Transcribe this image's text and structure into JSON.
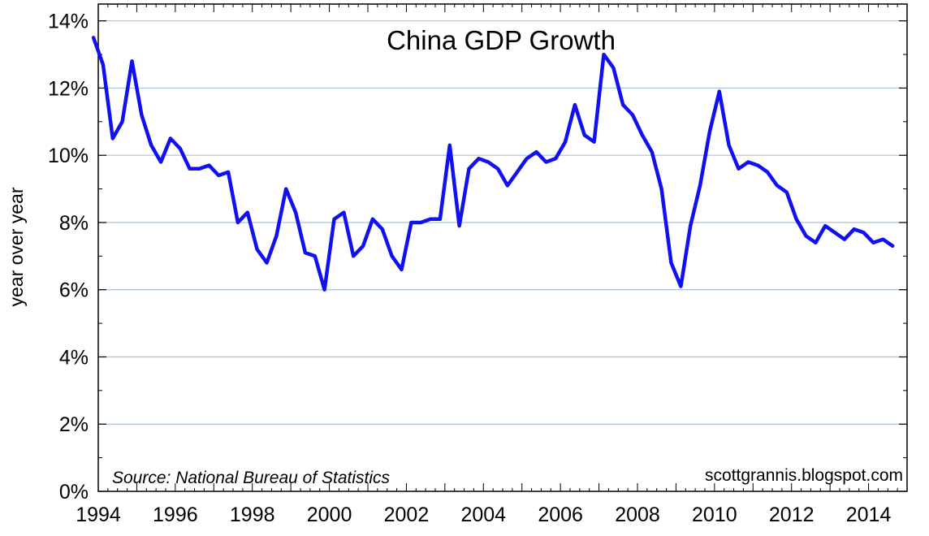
{
  "chart_data": {
    "type": "line",
    "title": "China GDP Growth",
    "xlabel": "",
    "ylabel": "year over year",
    "xlim": [
      1994,
      2015
    ],
    "ylim": [
      0,
      14.5
    ],
    "x_ticks": [
      1994,
      1996,
      1998,
      2000,
      2002,
      2004,
      2006,
      2008,
      2010,
      2012,
      2014
    ],
    "x_tick_labels": [
      "1994",
      "1996",
      "1998",
      "2000",
      "2002",
      "2004",
      "2006",
      "2008",
      "2010",
      "2012",
      "2014"
    ],
    "y_ticks": [
      0,
      2,
      4,
      6,
      8,
      10,
      12,
      14
    ],
    "y_tick_labels": [
      "0%",
      "2%",
      "4%",
      "6%",
      "8%",
      "10%",
      "12%",
      "14%"
    ],
    "grid": "horizontal",
    "source": "Source: National Bureau of Statistics",
    "credit": "scottgrannis.blogspot.com",
    "series": [
      {
        "name": "China GDP Growth (yoy %)",
        "color": "#1010f0",
        "x": [
          1993.875,
          1994.125,
          1994.375,
          1994.625,
          1994.875,
          1995.125,
          1995.375,
          1995.625,
          1995.875,
          1996.125,
          1996.375,
          1996.625,
          1996.875,
          1997.125,
          1997.375,
          1997.625,
          1997.875,
          1998.125,
          1998.375,
          1998.625,
          1998.875,
          1999.125,
          1999.375,
          1999.625,
          1999.875,
          2000.125,
          2000.375,
          2000.625,
          2000.875,
          2001.125,
          2001.375,
          2001.625,
          2001.875,
          2002.125,
          2002.375,
          2002.625,
          2002.875,
          2003.125,
          2003.375,
          2003.625,
          2003.875,
          2004.125,
          2004.375,
          2004.625,
          2004.875,
          2005.125,
          2005.375,
          2005.625,
          2005.875,
          2006.125,
          2006.375,
          2006.625,
          2006.875,
          2007.125,
          2007.375,
          2007.625,
          2007.875,
          2008.125,
          2008.375,
          2008.625,
          2008.875,
          2009.125,
          2009.375,
          2009.625,
          2009.875,
          2010.125,
          2010.375,
          2010.625,
          2010.875,
          2011.125,
          2011.375,
          2011.625,
          2011.875,
          2012.125,
          2012.375,
          2012.625,
          2012.875,
          2013.125,
          2013.375,
          2013.625,
          2013.875,
          2014.125,
          2014.375,
          2014.625
        ],
        "values": [
          13.5,
          12.7,
          10.5,
          11.0,
          12.8,
          11.2,
          10.3,
          9.8,
          10.5,
          10.2,
          9.6,
          9.6,
          9.7,
          9.4,
          9.5,
          8.0,
          8.3,
          7.2,
          6.8,
          7.6,
          9.0,
          8.3,
          7.1,
          7.0,
          6.0,
          8.1,
          8.3,
          7.0,
          7.3,
          8.1,
          7.8,
          7.0,
          6.6,
          8.0,
          8.0,
          8.1,
          8.1,
          10.3,
          7.9,
          9.6,
          9.9,
          9.8,
          9.6,
          9.1,
          9.5,
          9.9,
          10.1,
          9.8,
          9.9,
          10.4,
          11.5,
          10.6,
          10.4,
          13.0,
          12.6,
          11.5,
          11.2,
          10.6,
          10.1,
          9.0,
          6.8,
          6.1,
          7.9,
          9.1,
          10.7,
          11.9,
          10.3,
          9.6,
          9.8,
          9.7,
          9.5,
          9.1,
          8.9,
          8.1,
          7.6,
          7.4,
          7.9,
          7.7,
          7.5,
          7.8,
          7.7,
          7.4,
          7.5,
          7.3
        ]
      }
    ]
  }
}
